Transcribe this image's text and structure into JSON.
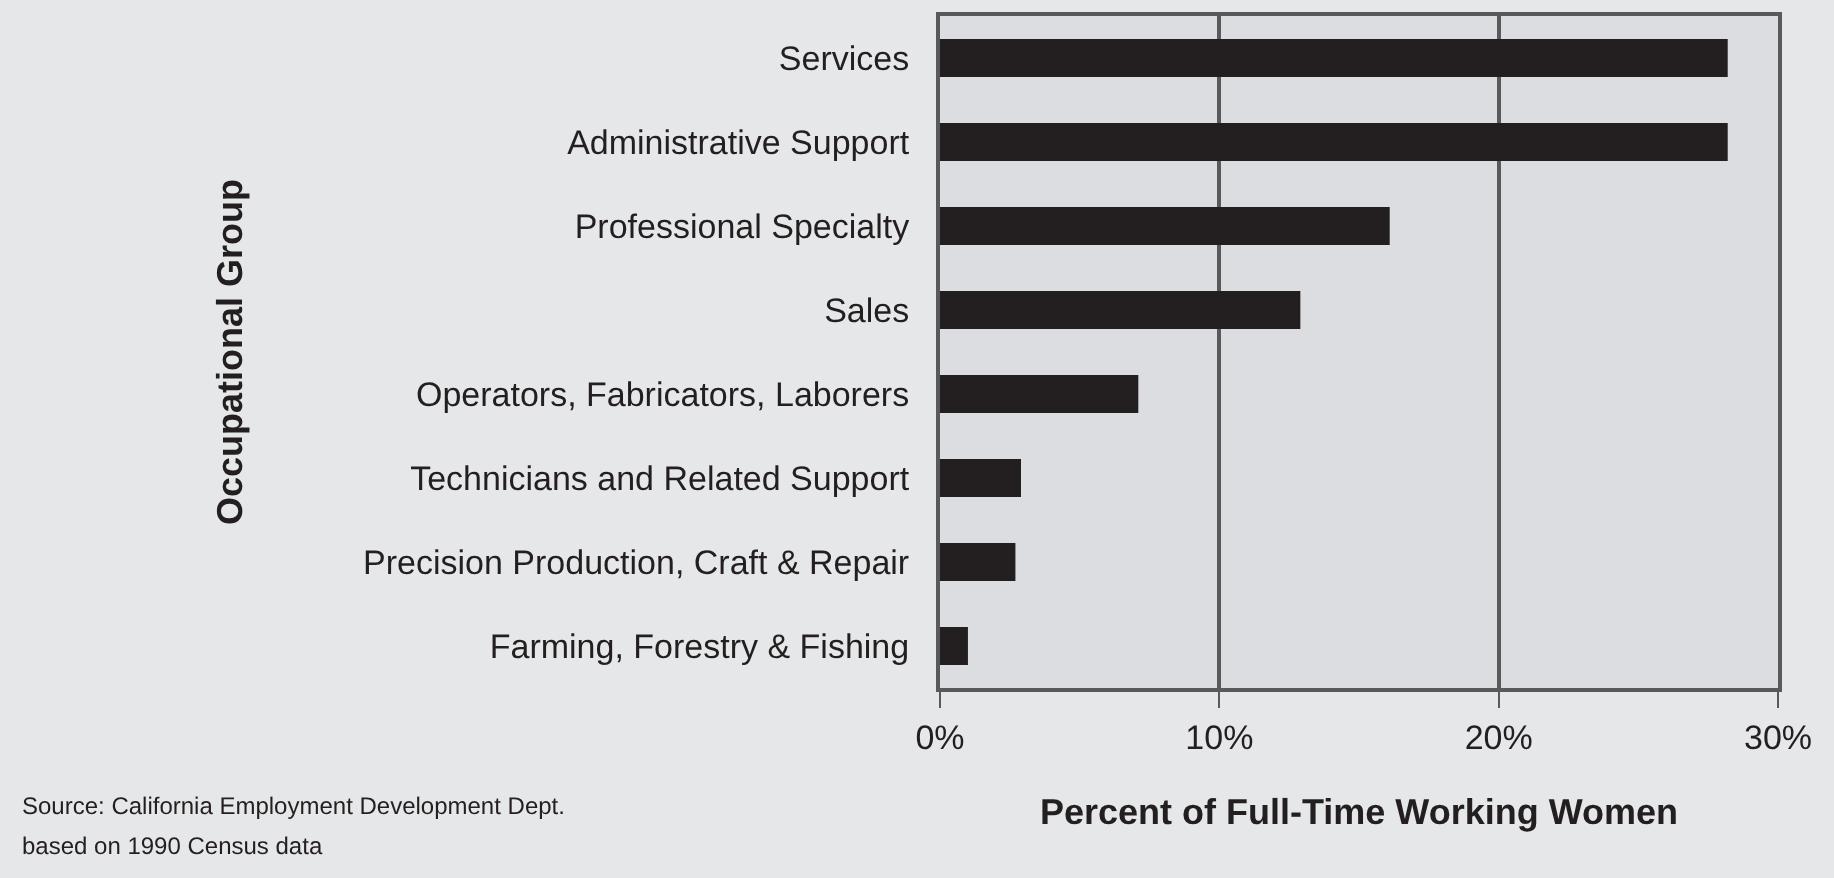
{
  "chart_data": {
    "type": "bar",
    "orientation": "horizontal",
    "categories": [
      "Services",
      "Administrative Support",
      "Professional Specialty",
      "Sales",
      "Operators, Fabricators, Laborers",
      "Technicians and Related Support",
      "Precision Production, Craft & Repair",
      "Farming, Forestry & Fishing"
    ],
    "values": [
      28.2,
      28.2,
      16.1,
      12.9,
      7.1,
      2.9,
      2.7,
      1.0
    ],
    "color": "#231f20",
    "xlabel": "Percent of Full-Time Working Women",
    "ylabel": "Occupational Group",
    "xlim": [
      0,
      30
    ],
    "xticks": [
      {
        "value": 0,
        "label": "0%"
      },
      {
        "value": 10,
        "label": "10%"
      },
      {
        "value": 20,
        "label": "20%"
      },
      {
        "value": 30,
        "label": "30%"
      }
    ],
    "grid": "x",
    "annotations": [
      "Source: California Employment Development Dept.",
      "based on 1990 Census data"
    ]
  }
}
